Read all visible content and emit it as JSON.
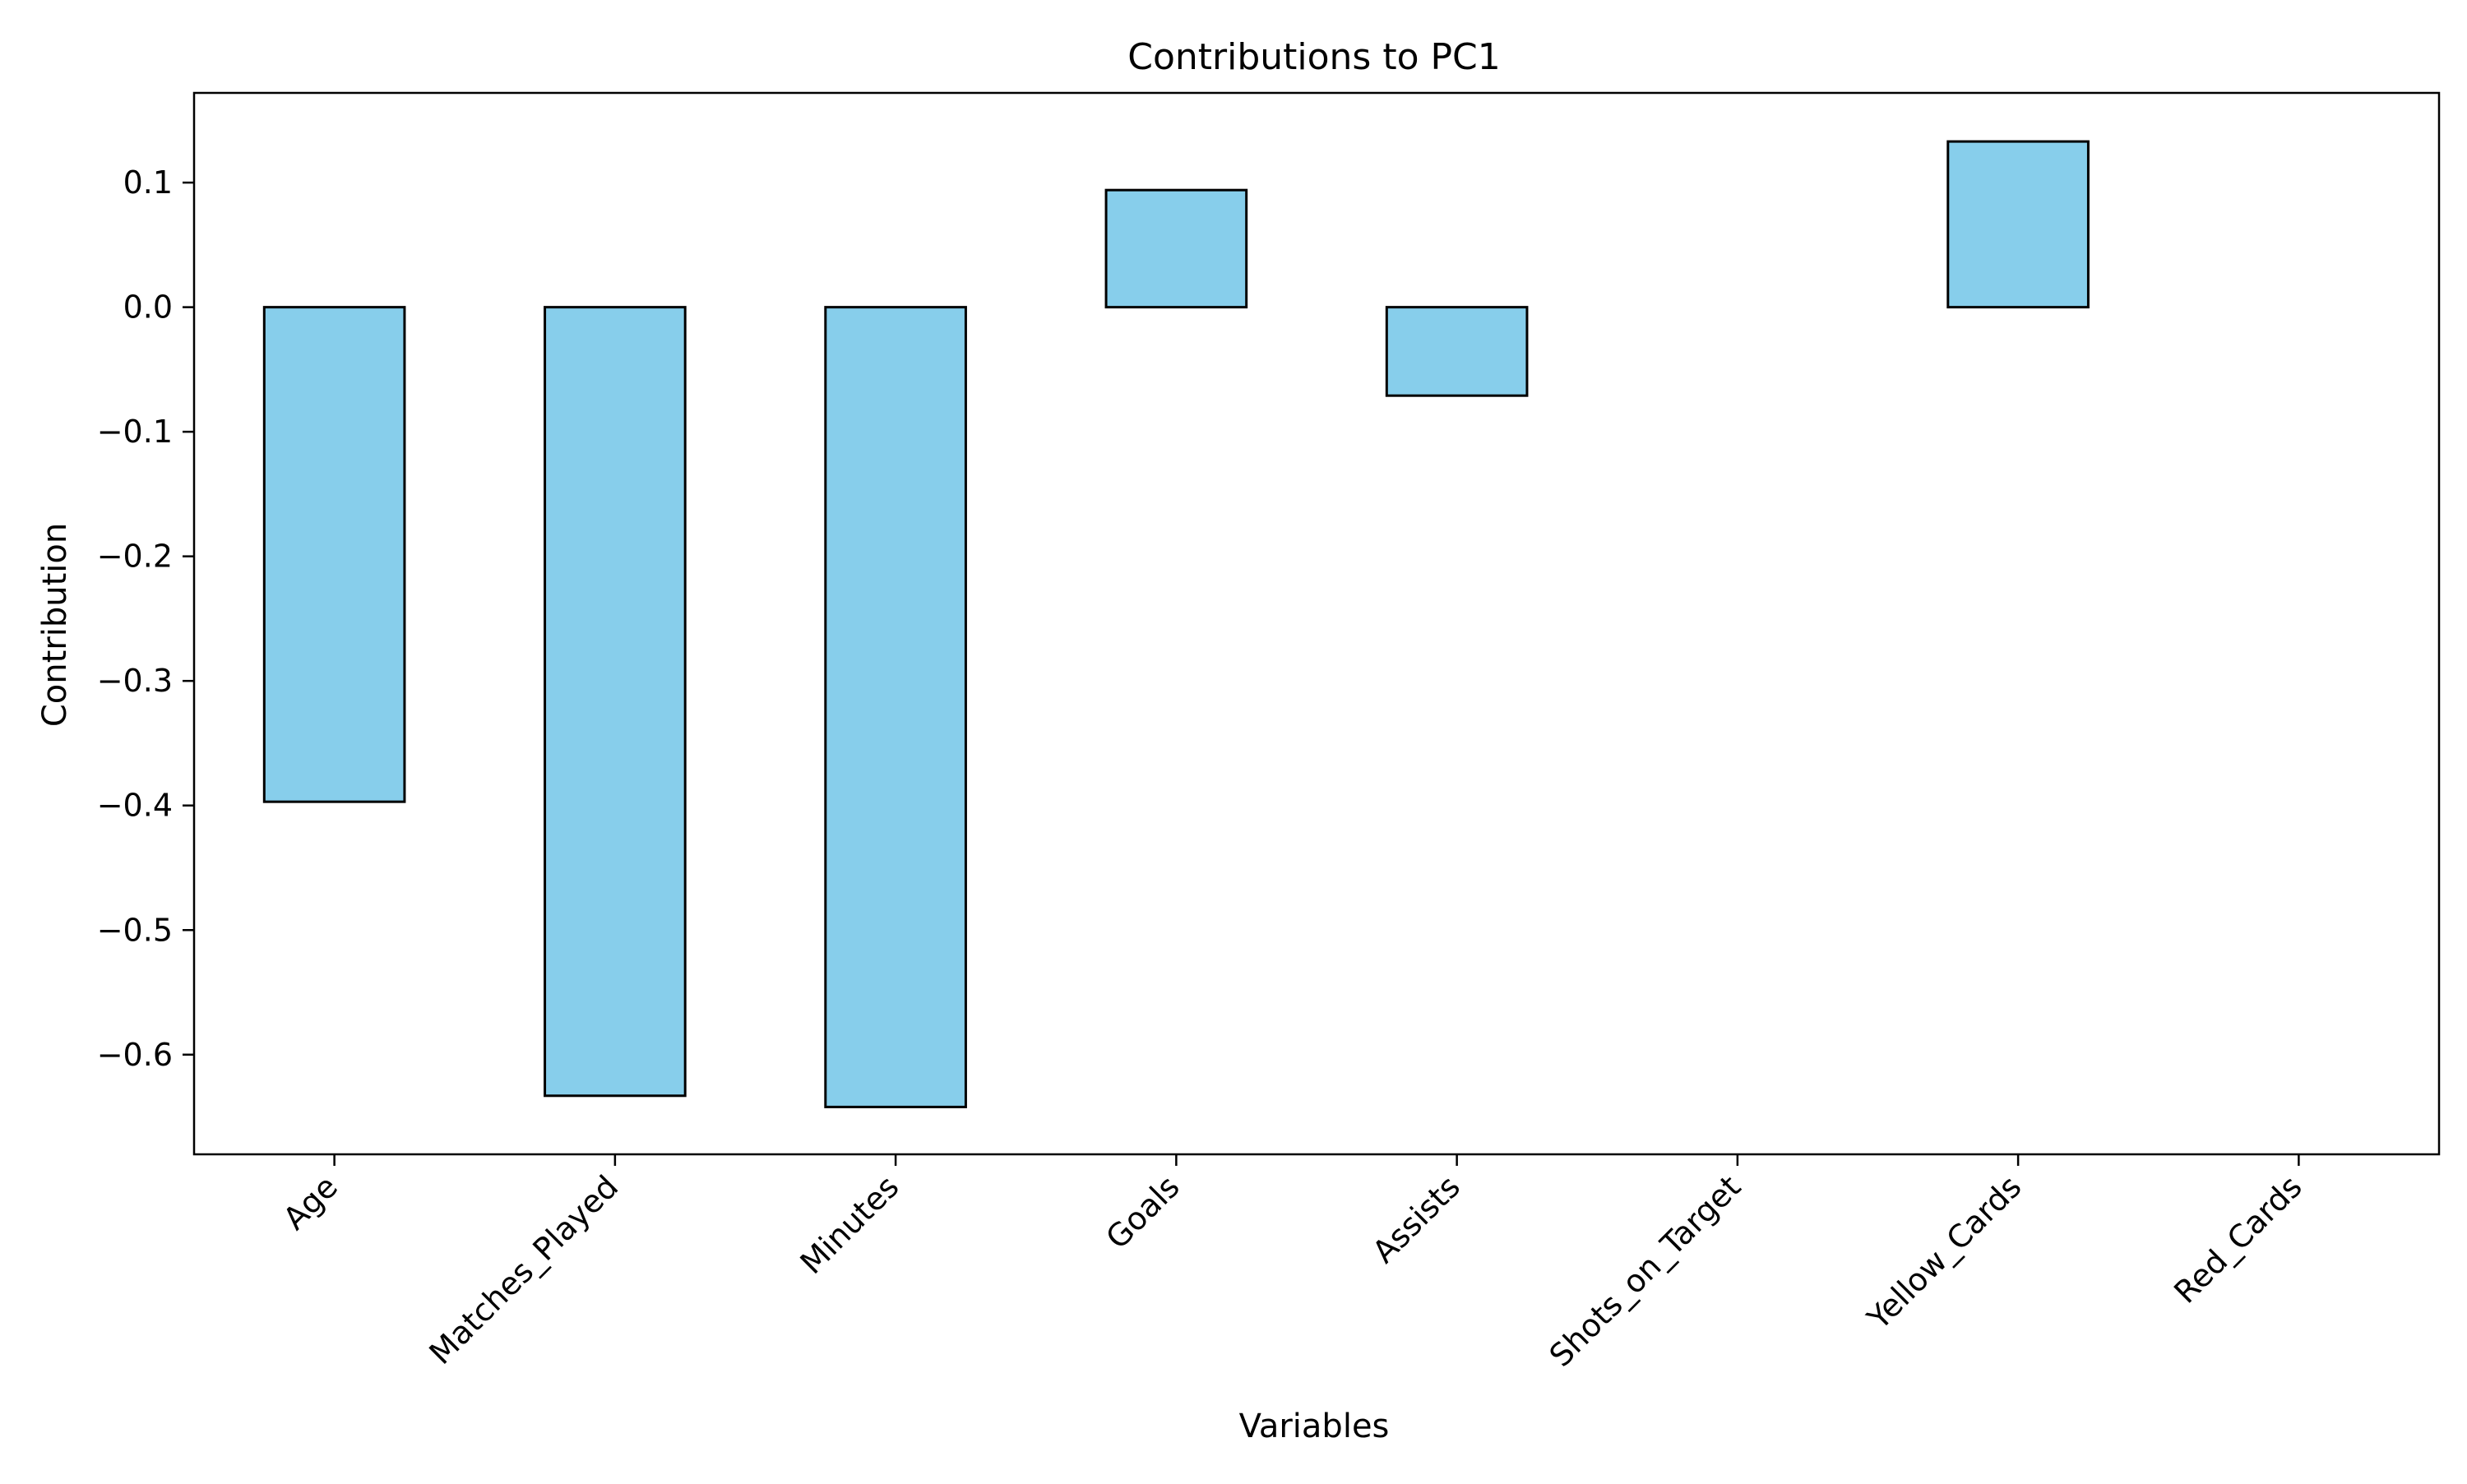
{
  "chart_data": {
    "type": "bar",
    "title": "Contributions to PC1",
    "xlabel": "Variables",
    "ylabel": "Contribution",
    "categories": [
      "Age",
      "Matches_Played",
      "Minutes",
      "Goals",
      "Assists",
      "Shots_on_Target",
      "Yellow_Cards",
      "Red_Cards"
    ],
    "values": [
      -0.397,
      -0.633,
      -0.642,
      0.094,
      -0.071,
      0.0,
      0.133,
      0.0
    ],
    "ylim": [
      -0.68,
      0.172
    ],
    "yticks": [
      0.1,
      0.0,
      -0.1,
      -0.2,
      -0.3,
      -0.4,
      -0.5,
      -0.6
    ],
    "ytick_labels": [
      "0.1",
      "0.0",
      "−0.1",
      "−0.2",
      "−0.3",
      "−0.4",
      "−0.5",
      "−0.6"
    ],
    "bar_color": "#87ceeb",
    "edge_color": "#000000",
    "grid": false,
    "legend": false,
    "xtick_rotation": 45
  }
}
